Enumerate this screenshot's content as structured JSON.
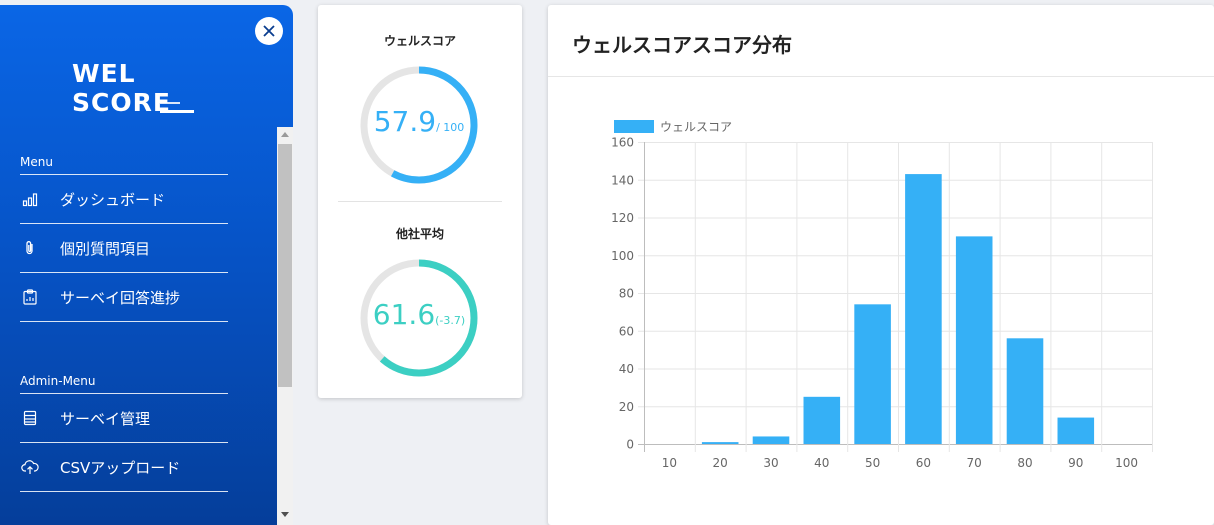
{
  "sidebar": {
    "logo_line1": "WEL",
    "logo_line2": "SCORE",
    "menu_heading": "Menu",
    "menu_items": [
      {
        "label": "ダッシュボード",
        "icon": "bar-chart-icon"
      },
      {
        "label": "個別質問項目",
        "icon": "paperclip-icon"
      },
      {
        "label": "サーベイ回答進捗",
        "icon": "clipboard-chart-icon"
      }
    ],
    "admin_heading": "Admin-Menu",
    "admin_items": [
      {
        "label": "サーベイ管理",
        "icon": "table-icon"
      },
      {
        "label": "CSVアップロード",
        "icon": "cloud-upload-icon"
      }
    ]
  },
  "score_card": {
    "well_title": "ウェルスコア",
    "well_value": "57.9",
    "well_suffix": "/ 100",
    "well_progress": 0.579,
    "avg_title": "他社平均",
    "avg_value": "61.6",
    "avg_diff": "(-3.7)",
    "avg_progress": 0.616
  },
  "chart_card": {
    "title": "ウェルスコアスコア分布"
  },
  "colors": {
    "well_blue": "#35b0f6",
    "avg_teal": "#3ccfc3",
    "gauge_track": "#e5e5e5",
    "bar": "#35b0f6"
  },
  "chart_data": {
    "type": "bar",
    "categories": [
      "10",
      "20",
      "30",
      "40",
      "50",
      "60",
      "70",
      "80",
      "90",
      "100"
    ],
    "series": [
      {
        "name": "ウェルスコア",
        "values": [
          0,
          1,
          4,
          25,
          74,
          143,
          110,
          56,
          14,
          0
        ]
      }
    ],
    "ylim": [
      0,
      160
    ],
    "yticks": [
      0,
      20,
      40,
      60,
      80,
      100,
      120,
      140,
      160
    ],
    "legend": "top-left",
    "grid": true
  }
}
